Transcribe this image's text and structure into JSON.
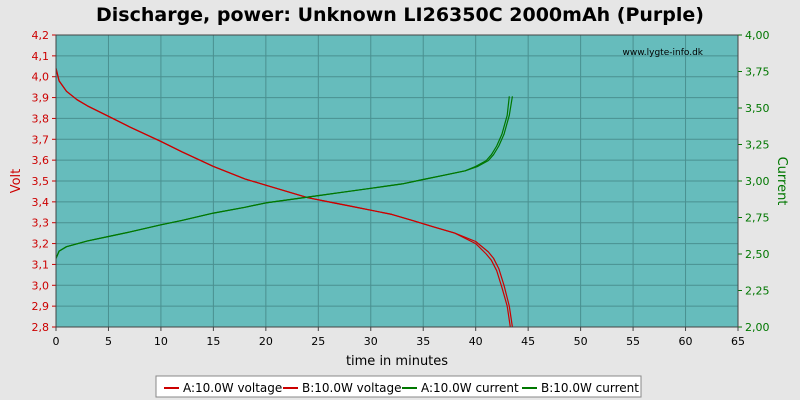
{
  "chart_data": {
    "type": "line",
    "title": "Discharge, power: Unknown LI26350C 2000mAh (Purple)",
    "xlabel": "time in minutes",
    "ylabel_left": "Volt",
    "ylabel_right": "Current",
    "watermark": "www.lygte-info.dk",
    "xlim": [
      0,
      65
    ],
    "ylim_left": [
      2.8,
      4.2
    ],
    "ylim_right": [
      2.0,
      4.0
    ],
    "x_ticks": [
      "0",
      "5",
      "10",
      "15",
      "20",
      "25",
      "30",
      "35",
      "40",
      "45",
      "50",
      "55",
      "60",
      "65"
    ],
    "y_left_ticks": [
      "2,8",
      "2,9",
      "3,0",
      "3,1",
      "3,2",
      "3,3",
      "3,4",
      "3,5",
      "3,6",
      "3,7",
      "3,8",
      "3,9",
      "4,0",
      "4,1",
      "4,2"
    ],
    "y_right_ticks": [
      "2,00",
      "2,25",
      "2,50",
      "2,75",
      "3,00",
      "3,25",
      "3,50",
      "3,75",
      "4,00"
    ],
    "grid": true,
    "legend_position": "bottom",
    "colors": {
      "voltage": "#cc0000",
      "current": "#007700",
      "plot_bg": "#66bcbc",
      "left_axis": "#cc0000",
      "right_axis": "#007700"
    },
    "series": [
      {
        "name": "A:10.0W voltage",
        "axis": "left",
        "color": "#cc0000",
        "x": [
          0,
          0.3,
          1,
          2,
          3,
          5,
          7,
          10,
          12,
          15,
          18,
          20,
          22,
          24,
          26,
          28,
          30,
          32,
          34,
          36,
          38,
          40,
          41,
          41.5,
          42,
          42.5,
          43,
          43.3
        ],
        "y": [
          4.04,
          3.98,
          3.93,
          3.89,
          3.86,
          3.81,
          3.76,
          3.69,
          3.64,
          3.57,
          3.51,
          3.48,
          3.45,
          3.42,
          3.4,
          3.38,
          3.36,
          3.34,
          3.31,
          3.28,
          3.25,
          3.2,
          3.15,
          3.12,
          3.07,
          2.99,
          2.9,
          2.8
        ]
      },
      {
        "name": "B:10.0W voltage",
        "axis": "left",
        "color": "#cc0000",
        "x": [
          0,
          0.3,
          1,
          2,
          3,
          5,
          7,
          10,
          12,
          15,
          18,
          20,
          22,
          24,
          26,
          28,
          30,
          32,
          34,
          36,
          38,
          40,
          41.2,
          41.7,
          42.2,
          42.7,
          43.2,
          43.5
        ],
        "y": [
          4.04,
          3.98,
          3.93,
          3.89,
          3.86,
          3.81,
          3.76,
          3.69,
          3.64,
          3.57,
          3.51,
          3.48,
          3.45,
          3.42,
          3.4,
          3.38,
          3.36,
          3.34,
          3.31,
          3.28,
          3.25,
          3.21,
          3.16,
          3.13,
          3.08,
          3.0,
          2.9,
          2.8
        ]
      },
      {
        "name": "A:10.0W current",
        "axis": "right",
        "color": "#007700",
        "x": [
          0,
          0.3,
          1,
          2,
          3,
          5,
          7,
          10,
          12,
          15,
          18,
          20,
          22,
          25,
          27,
          30,
          33,
          35,
          37,
          39,
          40,
          41,
          41.5,
          42,
          42.5,
          43,
          43.2
        ],
        "y": [
          2.47,
          2.52,
          2.55,
          2.57,
          2.59,
          2.62,
          2.65,
          2.7,
          2.73,
          2.78,
          2.82,
          2.85,
          2.87,
          2.9,
          2.92,
          2.95,
          2.98,
          3.01,
          3.04,
          3.07,
          3.1,
          3.14,
          3.18,
          3.24,
          3.32,
          3.45,
          3.58
        ]
      },
      {
        "name": "B:10.0W current",
        "axis": "right",
        "color": "#007700",
        "x": [
          0,
          0.3,
          1,
          2,
          3,
          5,
          7,
          10,
          12,
          15,
          18,
          20,
          22,
          25,
          27,
          30,
          33,
          35,
          37,
          39,
          40.2,
          41.2,
          41.7,
          42.2,
          42.7,
          43.2,
          43.5
        ],
        "y": [
          2.47,
          2.52,
          2.55,
          2.57,
          2.59,
          2.62,
          2.65,
          2.7,
          2.73,
          2.78,
          2.82,
          2.85,
          2.87,
          2.9,
          2.92,
          2.95,
          2.98,
          3.01,
          3.04,
          3.07,
          3.1,
          3.14,
          3.18,
          3.24,
          3.32,
          3.45,
          3.58
        ]
      }
    ]
  }
}
